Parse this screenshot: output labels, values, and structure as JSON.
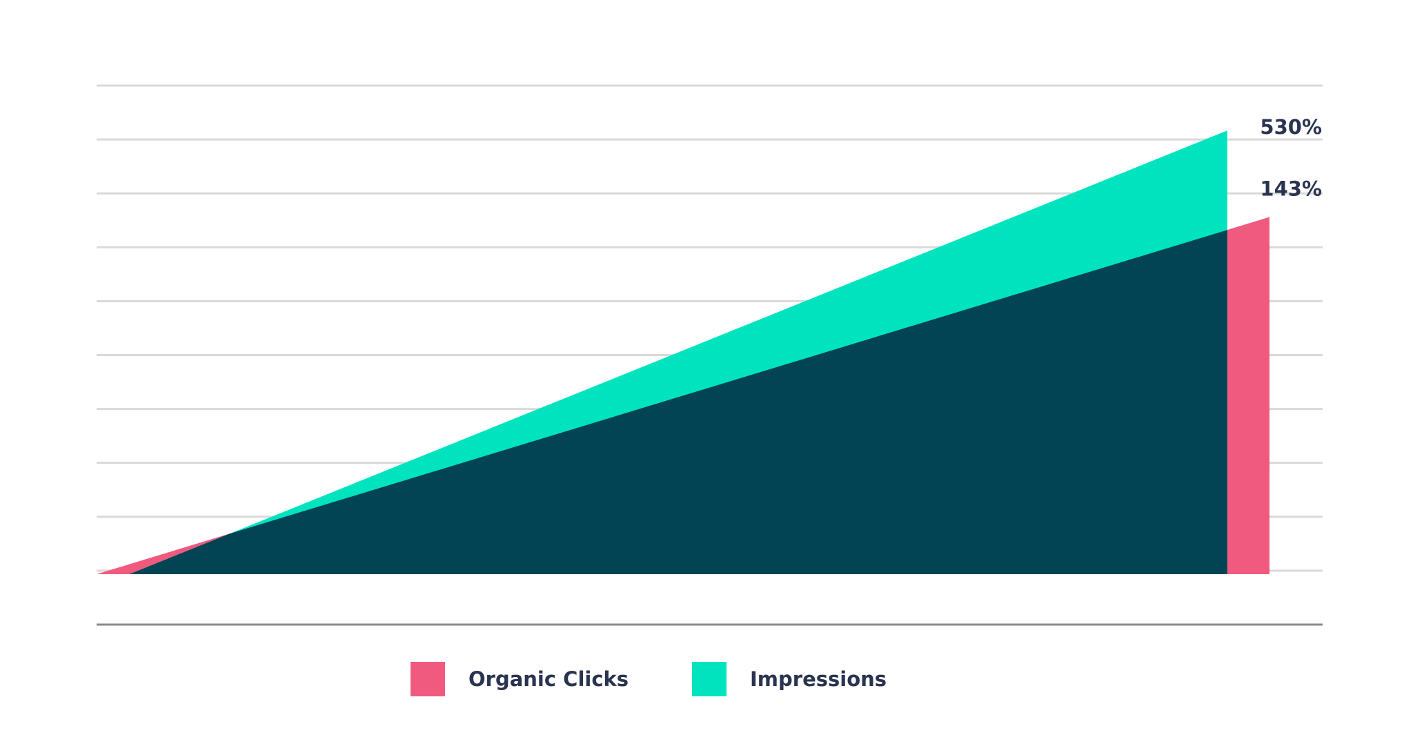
{
  "chart_data": {
    "type": "area",
    "title": "",
    "xlabel": "",
    "ylabel": "",
    "ylim": [
      0,
      100
    ],
    "grid": true,
    "legend_position": "bottom-center",
    "series": [
      {
        "name": "Organic Clicks",
        "color": "#f05a7e",
        "x": [
          0,
          1
        ],
        "values": [
          0,
          66
        ],
        "end_label": "143%"
      },
      {
        "name": "Impressions",
        "color": "#00e3bf",
        "x": [
          0.028,
          0.964
        ],
        "values": [
          0,
          82
        ],
        "end_label": "530%"
      }
    ],
    "overlap_color": "#034454"
  },
  "legend": {
    "items": [
      {
        "label": "Organic Clicks",
        "color": "#f05a7e"
      },
      {
        "label": "Impressions",
        "color": "#00e3bf"
      }
    ]
  }
}
